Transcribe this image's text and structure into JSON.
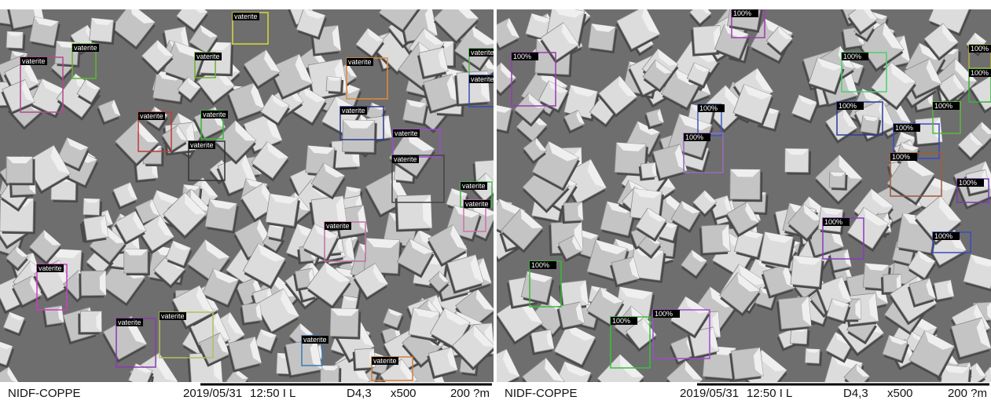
{
  "panels": [
    {
      "footer": {
        "operator": "NIDF-COPPE",
        "date": "2019/05/31",
        "time": "12:50 I  L",
        "detector": "D4,3",
        "magnification": "x500",
        "scale": "200 ?m"
      },
      "detections": [
        {
          "label": "vaterite",
          "color": "#b04a8a"
        },
        {
          "label": "vaterite",
          "color": "#5cb82e"
        },
        {
          "label": "vaterite",
          "color": "#6fb030"
        },
        {
          "label": "vaterite",
          "color": "#d8d83a"
        },
        {
          "label": "vaterite",
          "color": "#e08a3a"
        },
        {
          "label": "vaterite",
          "color": "#4cb84c"
        },
        {
          "label": "vaterite",
          "color": "#3a4ab8"
        },
        {
          "label": "vaterite",
          "color": "#c03a3a"
        },
        {
          "label": "vaterite",
          "color": "#333333"
        },
        {
          "label": "vaterite",
          "color": "#3ab83a"
        },
        {
          "label": "vaterite",
          "color": "#2a3a8a"
        },
        {
          "label": "vaterite",
          "color": "#a04ad0"
        },
        {
          "label": "vaterite",
          "color": "#444444"
        },
        {
          "label": "vaterite",
          "color": "#c070a0"
        },
        {
          "label": "vaterite",
          "color": "#d03ac0"
        },
        {
          "label": "vaterite",
          "color": "#8a3ab0"
        },
        {
          "label": "vaterite",
          "color": "#b0c060"
        },
        {
          "label": "vaterite",
          "color": "#3a7ab8"
        },
        {
          "label": "vaterite",
          "color": "#d0803a"
        },
        {
          "label": "vaterite",
          "color": "#3ab84a"
        },
        {
          "label": "vaterite",
          "color": "#d070b0"
        }
      ]
    },
    {
      "footer": {
        "operator": "NIDF-COPPE",
        "date": "2019/05/31",
        "time": "12:50 I  L",
        "detector": "D4,3",
        "magnification": "x500",
        "scale": "200 ?m"
      },
      "detections": [
        {
          "label": "100%",
          "color": "#9a3ab0"
        },
        {
          "label": "100%",
          "color": "#4ad06a"
        },
        {
          "label": "100%",
          "color": "#2a3a9a"
        },
        {
          "label": "100%",
          "color": "#3a4ac0"
        },
        {
          "label": "100%",
          "color": "#a05a3a"
        },
        {
          "label": "100%",
          "color": "#8a3ac0"
        },
        {
          "label": "100%",
          "color": "#3ab83a"
        },
        {
          "label": "100%",
          "color": "#3ac03a"
        },
        {
          "label": "100%",
          "color": "#a04ad0"
        },
        {
          "label": "100%",
          "color": "#b0b03a"
        },
        {
          "label": "100%",
          "color": "#3ab03a"
        },
        {
          "label": "100%",
          "color": "#5ab83a"
        },
        {
          "label": "100%",
          "color": "#3a5ac0"
        },
        {
          "label": "100%",
          "color": "#9a6ac0"
        },
        {
          "label": "100%",
          "color": "#a03ab0"
        },
        {
          "label": "100%",
          "color": "#3a4ac0"
        },
        {
          "label": "100%",
          "color": "#7a3ab0"
        }
      ]
    }
  ]
}
